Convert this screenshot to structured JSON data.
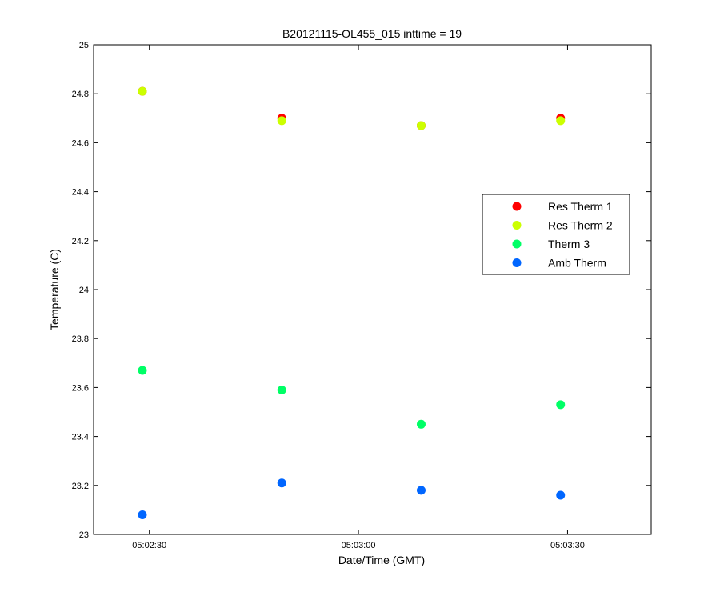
{
  "chart_data": {
    "type": "scatter",
    "title": "B20121115-OL455_015 inttime = 19",
    "xlabel": "Date/Time (GMT)",
    "ylabel": "Temperature (C)",
    "xlim": [
      "05:02:22",
      "05:03:42"
    ],
    "ylim": [
      23,
      25
    ],
    "xticks": [
      "05:02:30",
      "05:03:00",
      "05:03:30"
    ],
    "yticks": [
      23,
      23.2,
      23.4,
      23.6,
      23.8,
      24,
      24.2,
      24.4,
      24.6,
      24.8,
      25
    ],
    "grid": false,
    "legend_position": "right",
    "x": [
      "05:02:29",
      "05:02:49",
      "05:03:09",
      "05:03:29"
    ],
    "series": [
      {
        "name": "Res Therm 1",
        "color": "#ff0000",
        "values": [
          24.81,
          24.7,
          24.67,
          24.7
        ]
      },
      {
        "name": "Res Therm 2",
        "color": "#ccff00",
        "values": [
          24.81,
          24.69,
          24.67,
          24.69
        ]
      },
      {
        "name": "Therm 3",
        "color": "#00ff66",
        "values": [
          23.67,
          23.59,
          23.45,
          23.53
        ]
      },
      {
        "name": "Amb Therm",
        "color": "#0066ff",
        "values": [
          23.08,
          23.21,
          23.18,
          23.16
        ]
      }
    ]
  }
}
